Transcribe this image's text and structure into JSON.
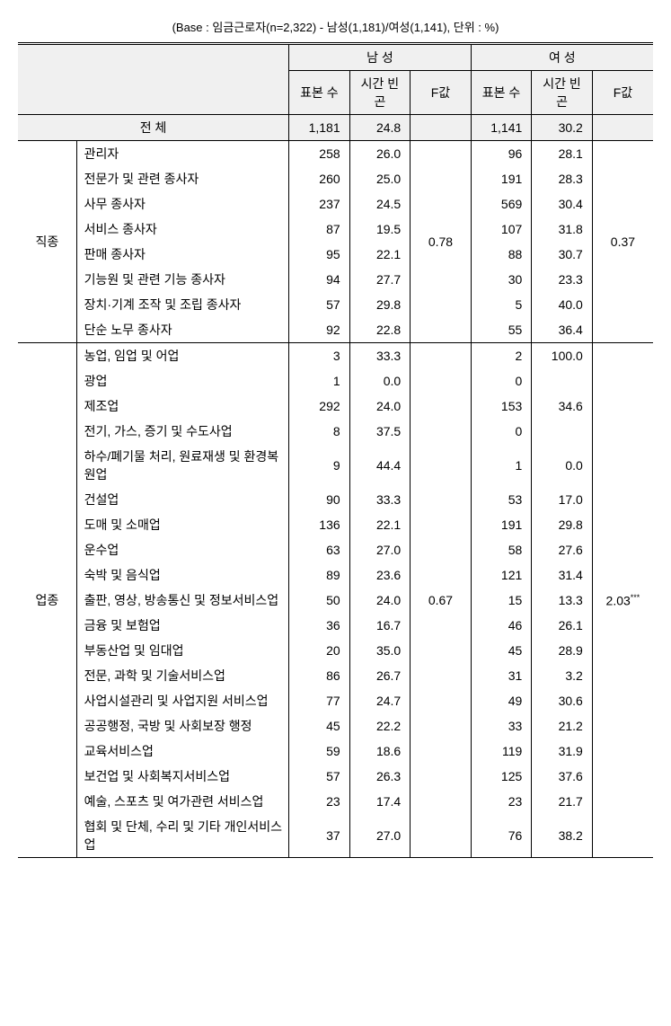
{
  "caption": "(Base : 임금근로자(n=2,322) - 남성(1,181)/여성(1,141), 단위 : %)",
  "headers": {
    "male": "남 성",
    "female": "여 성",
    "sample": "표본\n수",
    "timePov": "시간\n빈곤",
    "fval": "F값"
  },
  "total_label": "전 체",
  "total": {
    "m_n": "1,181",
    "m_v": "24.8",
    "f_n": "1,141",
    "f_v": "30.2"
  },
  "groups": [
    {
      "cat": "직종",
      "m_f": "0.78",
      "f_f": "0.37",
      "rows": [
        {
          "label": "관리자",
          "m_n": "258",
          "m_v": "26.0",
          "f_n": "96",
          "f_v": "28.1"
        },
        {
          "label": "전문가 및 관련 종사자",
          "m_n": "260",
          "m_v": "25.0",
          "f_n": "191",
          "f_v": "28.3"
        },
        {
          "label": "사무 종사자",
          "m_n": "237",
          "m_v": "24.5",
          "f_n": "569",
          "f_v": "30.4"
        },
        {
          "label": "서비스 종사자",
          "m_n": "87",
          "m_v": "19.5",
          "f_n": "107",
          "f_v": "31.8"
        },
        {
          "label": "판매 종사자",
          "m_n": "95",
          "m_v": "22.1",
          "f_n": "88",
          "f_v": "30.7"
        },
        {
          "label": "기능원 및 관련 기능 종사자",
          "m_n": "94",
          "m_v": "27.7",
          "f_n": "30",
          "f_v": "23.3"
        },
        {
          "label": "장치·기계 조작 및 조립 종사자",
          "m_n": "57",
          "m_v": "29.8",
          "f_n": "5",
          "f_v": "40.0"
        },
        {
          "label": "단순 노무 종사자",
          "m_n": "92",
          "m_v": "22.8",
          "f_n": "55",
          "f_v": "36.4"
        }
      ]
    },
    {
      "cat": "업종",
      "m_f": "0.67",
      "f_f": "2.03",
      "f_f_sup": "***",
      "rows": [
        {
          "label": "농업, 임업 및 어업",
          "m_n": "3",
          "m_v": "33.3",
          "f_n": "2",
          "f_v": "100.0"
        },
        {
          "label": "광업",
          "m_n": "1",
          "m_v": "0.0",
          "f_n": "0",
          "f_v": ""
        },
        {
          "label": "제조업",
          "m_n": "292",
          "m_v": "24.0",
          "f_n": "153",
          "f_v": "34.6"
        },
        {
          "label": "전기, 가스, 증기 및 수도사업",
          "m_n": "8",
          "m_v": "37.5",
          "f_n": "0",
          "f_v": ""
        },
        {
          "label": "하수/폐기물 처리, 원료재생 및 환경복원업",
          "m_n": "9",
          "m_v": "44.4",
          "f_n": "1",
          "f_v": "0.0"
        },
        {
          "label": "건설업",
          "m_n": "90",
          "m_v": "33.3",
          "f_n": "53",
          "f_v": "17.0"
        },
        {
          "label": "도매 및 소매업",
          "m_n": "136",
          "m_v": "22.1",
          "f_n": "191",
          "f_v": "29.8"
        },
        {
          "label": "운수업",
          "m_n": "63",
          "m_v": "27.0",
          "f_n": "58",
          "f_v": "27.6"
        },
        {
          "label": "숙박 및 음식업",
          "m_n": "89",
          "m_v": "23.6",
          "f_n": "121",
          "f_v": "31.4"
        },
        {
          "label": "출판, 영상, 방송통신 및 정보서비스업",
          "m_n": "50",
          "m_v": "24.0",
          "f_n": "15",
          "f_v": "13.3"
        },
        {
          "label": "금융 및 보험업",
          "m_n": "36",
          "m_v": "16.7",
          "f_n": "46",
          "f_v": "26.1"
        },
        {
          "label": "부동산업 및 임대업",
          "m_n": "20",
          "m_v": "35.0",
          "f_n": "45",
          "f_v": "28.9"
        },
        {
          "label": "전문, 과학 및 기술서비스업",
          "m_n": "86",
          "m_v": "26.7",
          "f_n": "31",
          "f_v": "3.2"
        },
        {
          "label": "사업시설관리 및 사업지원 서비스업",
          "m_n": "77",
          "m_v": "24.7",
          "f_n": "49",
          "f_v": "30.6"
        },
        {
          "label": "공공행정, 국방 및 사회보장 행정",
          "m_n": "45",
          "m_v": "22.2",
          "f_n": "33",
          "f_v": "21.2"
        },
        {
          "label": "교육서비스업",
          "m_n": "59",
          "m_v": "18.6",
          "f_n": "119",
          "f_v": "31.9"
        },
        {
          "label": "보건업 및 사회복지서비스업",
          "m_n": "57",
          "m_v": "26.3",
          "f_n": "125",
          "f_v": "37.6"
        },
        {
          "label": "예술, 스포츠 및 여가관련 서비스업",
          "m_n": "23",
          "m_v": "17.4",
          "f_n": "23",
          "f_v": "21.7"
        },
        {
          "label": "협회 및 단체, 수리 및 기타 개인서비스업",
          "m_n": "37",
          "m_v": "27.0",
          "f_n": "76",
          "f_v": "38.2"
        }
      ]
    }
  ],
  "style": {
    "header_bg": "#f0f0f0",
    "border_color": "#000000",
    "font_size": 14,
    "caption_font_size": 13
  }
}
